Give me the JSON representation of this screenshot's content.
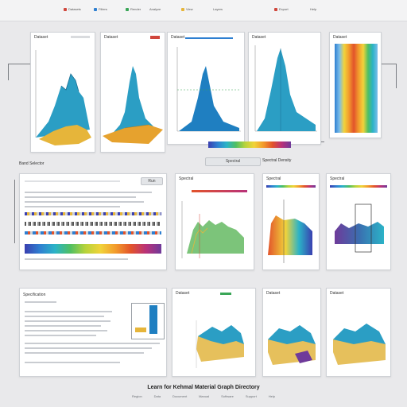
{
  "toolbar": {
    "items": [
      "Datasets",
      "Filters",
      "Render",
      "Analyze",
      "View",
      "Layers",
      "Export",
      "Help"
    ]
  },
  "top_row": {
    "p1_title": "Dataset",
    "p2_title": "Dataset",
    "p3_title": "Dataset",
    "p4_title": "Dataset",
    "p5_title": "Dataset"
  },
  "middle": {
    "section_label": "Band Selector",
    "left_button": "Run",
    "left_caption": "Spectral",
    "right_caption": "Spectral Density",
    "p2_title": "Spectral",
    "p3_title": "Spectral",
    "p4_title": "Spectral"
  },
  "bottom": {
    "p1_title": "Specification",
    "p2_title": "Dataset",
    "p3_title": "Dataset",
    "p4_title": "Dataset",
    "footer_title": "Learn for Kehmal Material Graph Directory",
    "footer_links": [
      "Region",
      "Data",
      "Document",
      "Manual",
      "Software",
      "Support",
      "Help"
    ]
  },
  "colors": {
    "accent": "#1f7fc1",
    "teal": "#2b9ec4",
    "gold": "#e6b53a",
    "panel_border": "#cfd2d6"
  }
}
